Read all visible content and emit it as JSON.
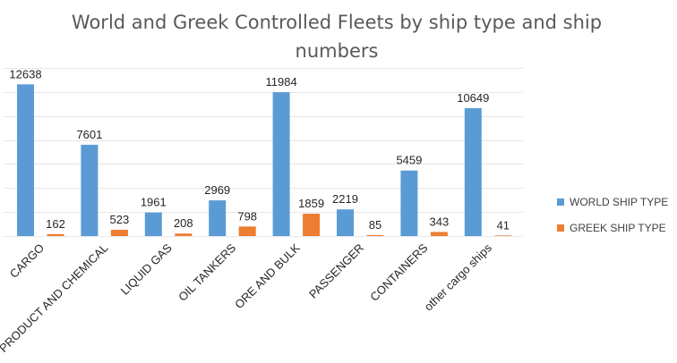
{
  "chart_data": {
    "type": "bar",
    "title": "World and Greek Controlled Fleets by ship type and ship numbers",
    "title_lines": [
      "World and Greek Controlled Fleets by ship type and ship",
      "numbers"
    ],
    "categories": [
      "CARGO",
      "PRODUCT AND CHEMICAL",
      "LIQUID GAS",
      "OIL TANKERS",
      "ORE AND BULK",
      "PASSENGER",
      "CONTAINERS",
      "other cargo ships"
    ],
    "series": [
      {
        "name": "WORLD SHIP TYPE",
        "values": [
          12638,
          7601,
          1961,
          2969,
          11984,
          2219,
          5459,
          10649
        ],
        "color": "#5b9bd5"
      },
      {
        "name": "GREEK SHIP TYPE",
        "values": [
          162,
          523,
          208,
          798,
          1859,
          85,
          343,
          41
        ],
        "color": "#ed7d31"
      }
    ],
    "xlabel": "",
    "ylabel": "",
    "ylim": [
      0,
      14000
    ],
    "grid": true,
    "legend": "right"
  }
}
